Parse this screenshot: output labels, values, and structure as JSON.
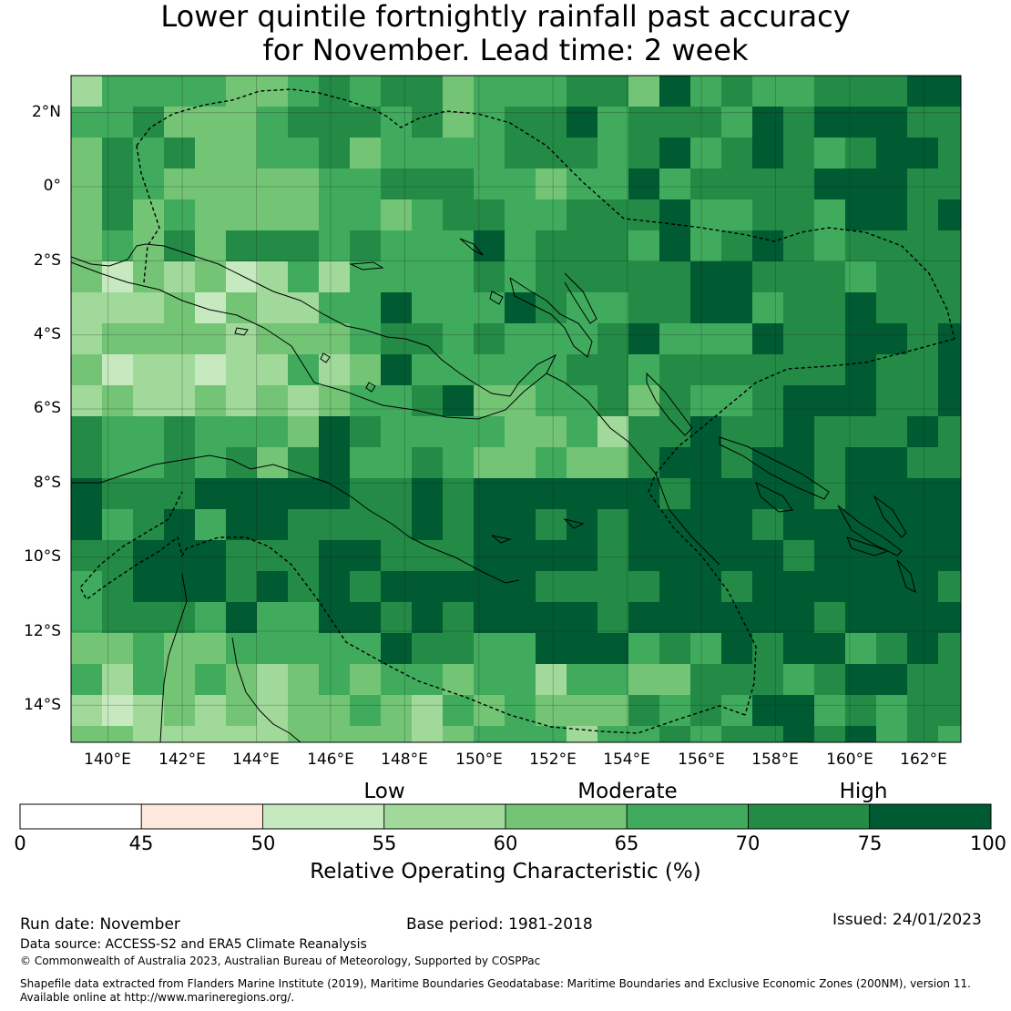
{
  "title": {
    "line1": "Lower quintile fortnightly rainfall past accuracy",
    "line2": "for November. Lead time: 2 week"
  },
  "map": {
    "lat_labels": [
      "2°N",
      "0°",
      "2°S",
      "4°S",
      "6°S",
      "8°S",
      "10°S",
      "12°S",
      "14°S"
    ],
    "lon_labels": [
      "140°E",
      "142°E",
      "144°E",
      "146°E",
      "148°E",
      "150°E",
      "152°E",
      "154°E",
      "156°E",
      "158°E",
      "160°E",
      "162°E"
    ],
    "lon_range": [
      139.0,
      163.0
    ],
    "lat_range": [
      -15.0,
      3.0
    ],
    "grid_resolution_deg": 0.833,
    "land_outline_color": "#000000",
    "eez_boundary_style": "dashed",
    "colors": {
      "0-45": "#ffffff",
      "45-50": "#fee8de",
      "50-55": "#c7e9c0",
      "55-60": "#a1d99b",
      "60-65": "#74c476",
      "65-70": "#41ab5d",
      "70-75": "#238b45",
      "75-100": "#005a32"
    }
  },
  "colorbar": {
    "category_labels": [
      "Low",
      "Moderate",
      "High"
    ],
    "tick_labels": [
      "0",
      "45",
      "50",
      "55",
      "60",
      "65",
      "70",
      "75",
      "100"
    ],
    "bins": [
      {
        "from": 0,
        "to": 45,
        "color": "#ffffff"
      },
      {
        "from": 45,
        "to": 50,
        "color": "#fee8de"
      },
      {
        "from": 50,
        "to": 55,
        "color": "#c7e9c0"
      },
      {
        "from": 55,
        "to": 60,
        "color": "#a1d99b"
      },
      {
        "from": 60,
        "to": 65,
        "color": "#74c476"
      },
      {
        "from": 65,
        "to": 70,
        "color": "#41ab5d"
      },
      {
        "from": 70,
        "to": 75,
        "color": "#238b45"
      },
      {
        "from": 75,
        "to": 100,
        "color": "#005a32"
      }
    ],
    "label": "Relative Operating Characteristic (%)"
  },
  "footer": {
    "run_date": "Run date: November",
    "base_period": "Base period: 1981-2018",
    "issued": "Issued: 24/01/2023",
    "data_source": "Data source: ACCESS-S2 and ERA5 Climate Reanalysis",
    "copyright": "© Commonwealth of Australia 2023, Australian Bureau of Meteorology, Supported by COSPPac",
    "shapefile_line1": "Shapefile data extracted from Flanders Marine Institute (2019), Maritime Boundaries Geodatabase: Maritime Boundaries and Exclusive Economic Zones (200NM), version 11.",
    "shapefile_line2": "Available online at http://www.marineregions.org/."
  }
}
